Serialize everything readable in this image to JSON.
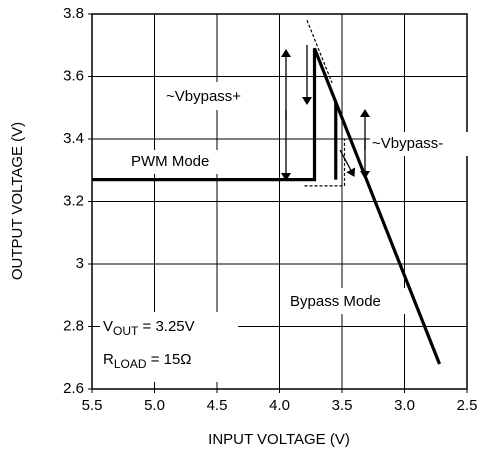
{
  "chart_data": {
    "type": "line",
    "xlabel": "INPUT VOLTAGE (V)",
    "ylabel": "OUTPUT VOLTAGE (V)",
    "xlim": [
      5.5,
      2.5
    ],
    "xticks": [
      5.5,
      {
        "value": 5,
        "label": "5.0"
      },
      4.5,
      {
        "value": 4,
        "label": "4.0"
      },
      3.5,
      {
        "value": 3,
        "label": "3.0"
      },
      2.5
    ],
    "ylim": [
      2.6,
      3.8
    ],
    "yticks": [
      2.6,
      2.8,
      3,
      3.2,
      3.4,
      3.6,
      3.8
    ],
    "grid": true,
    "series": [
      {
        "color": "#000000",
        "dashed": false,
        "x": [
          5.5,
          3.72,
          3.72,
          2.72
        ],
        "values": [
          3.27,
          3.27,
          3.69,
          2.68
        ]
      },
      {
        "color": "#000000",
        "dashed": false,
        "x": [
          3.55,
          3.55
        ],
        "values": [
          3.27,
          3.52
        ]
      },
      {
        "color": "#000000",
        "dashed": true,
        "x": [
          3.78,
          3.58
        ],
        "values": [
          3.78,
          3.58
        ]
      },
      {
        "color": "#000000",
        "dashed": true,
        "x": [
          3.8,
          3.48,
          3.48
        ],
        "values": [
          3.25,
          3.25,
          3.4
        ]
      }
    ],
    "annotations": {
      "bypass_plus": "~Vbypass+",
      "bypass_minus": "~Vbypass-",
      "pwm": "PWM Mode",
      "bypass": "Bypass Mode",
      "vout": {
        "main": "V",
        "sub": "OUT",
        "rest": " = 3.25V"
      },
      "rload": {
        "main": "R",
        "sub": "LOAD",
        "rest": " = 15Ω"
      }
    }
  }
}
